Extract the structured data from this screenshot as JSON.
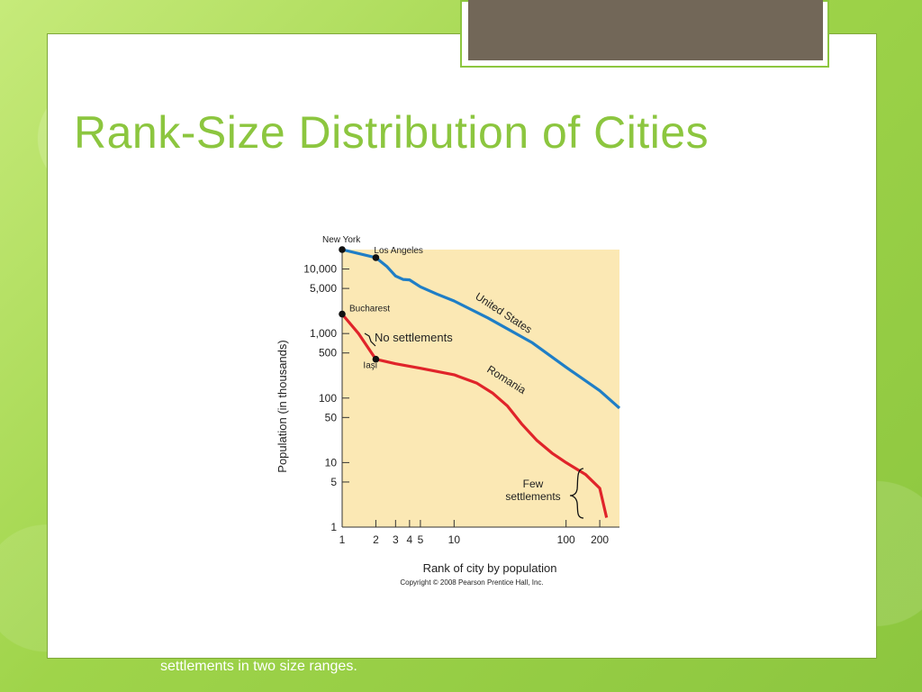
{
  "slide": {
    "title": "Rank-Size Distribution of Cities",
    "footer_text": "settlements in two size ranges."
  },
  "colors": {
    "accent": "#8cc63f",
    "plot_background": "#fbe8b4",
    "us_line": "#1f7ec6",
    "romania_line": "#e0242a"
  },
  "chart_data": {
    "type": "line",
    "xscale": "log",
    "yscale": "log",
    "xlim": [
      1,
      300
    ],
    "ylim": [
      1,
      20000
    ],
    "xlabel": "Rank of city by population",
    "ylabel": "Population (in thousands)",
    "xticks": [
      1,
      2,
      3,
      4,
      5,
      10,
      100,
      200
    ],
    "xtick_labels": [
      "1",
      "2",
      "3",
      "4",
      "5",
      "10",
      "100",
      "200"
    ],
    "yticks": [
      1,
      5,
      10,
      50,
      100,
      500,
      1000,
      5000,
      10000
    ],
    "ytick_labels": [
      "1",
      "5",
      "10",
      "50",
      "100",
      "500",
      "1,000",
      "5,000",
      "10,000"
    ],
    "series": [
      {
        "name": "United States",
        "color": "#1f7ec6",
        "x": [
          1,
          2,
          2.5,
          3,
          3.5,
          4,
          5,
          7,
          10,
          20,
          50,
          100,
          200,
          300
        ],
        "y": [
          20000,
          15000,
          11000,
          7800,
          6900,
          6800,
          5300,
          4100,
          3200,
          1750,
          720,
          300,
          130,
          70
        ]
      },
      {
        "name": "Romania",
        "color": "#e0242a",
        "x": [
          1,
          1.4,
          2,
          3,
          5,
          10,
          16,
          22,
          30,
          40,
          55,
          75,
          100,
          150,
          200,
          230
        ],
        "y": [
          2000,
          1000,
          400,
          340,
          290,
          230,
          170,
          120,
          75,
          40,
          22,
          14,
          10,
          6.5,
          4,
          1.4
        ]
      }
    ],
    "labeled_points": [
      {
        "label": "New York",
        "x": 1,
        "y": 20000
      },
      {
        "label": "Los Angeles",
        "x": 2,
        "y": 15000
      },
      {
        "label": "Bucharest",
        "x": 1,
        "y": 2000
      },
      {
        "label": "Iaşi",
        "x": 2,
        "y": 400
      }
    ],
    "annotations": {
      "us_label": "United States",
      "romania_label": "Romania",
      "no_settlements": "No settlements",
      "few_settlements_line1": "Few",
      "few_settlements_line2": "settlements"
    },
    "copyright": "Copyright © 2008 Pearson Prentice Hall, Inc."
  }
}
